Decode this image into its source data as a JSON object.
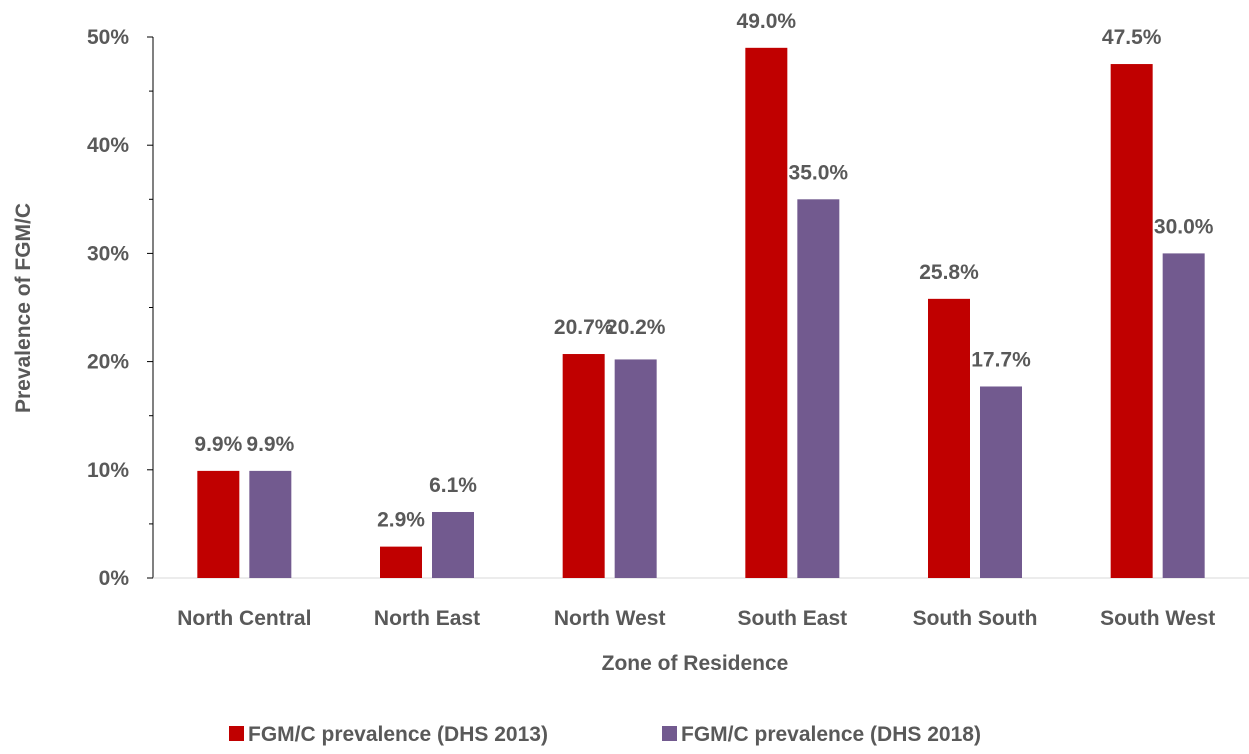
{
  "chart_data": {
    "type": "bar",
    "title": "",
    "xlabel": "Zone of Residence",
    "ylabel": "Prevalence of FGM/C",
    "ylim": [
      0,
      50
    ],
    "yticks": [
      "0%",
      "10%",
      "20%",
      "30%",
      "40%",
      "50%"
    ],
    "categories": [
      "North Central",
      "North East",
      "North West",
      "South East",
      "South South",
      "South West"
    ],
    "series": [
      {
        "name": "FGM/C prevalence (DHS 2013)",
        "values": [
          9.9,
          2.9,
          20.7,
          49.0,
          25.8,
          47.5
        ],
        "labels": [
          "9.9%",
          "2.9%",
          "20.7%",
          "49.0%",
          "25.8%",
          "47.5%"
        ],
        "color": "#c00000"
      },
      {
        "name": "FGM/C prevalence (DHS 2018)",
        "values": [
          9.9,
          6.1,
          20.2,
          35.0,
          17.7,
          30.0
        ],
        "labels": [
          "9.9%",
          "6.1%",
          "20.2%",
          "35.0%",
          "17.7%",
          "30.0%"
        ],
        "color": "#725a8f"
      }
    ],
    "grid": false,
    "legend_position": "bottom"
  }
}
